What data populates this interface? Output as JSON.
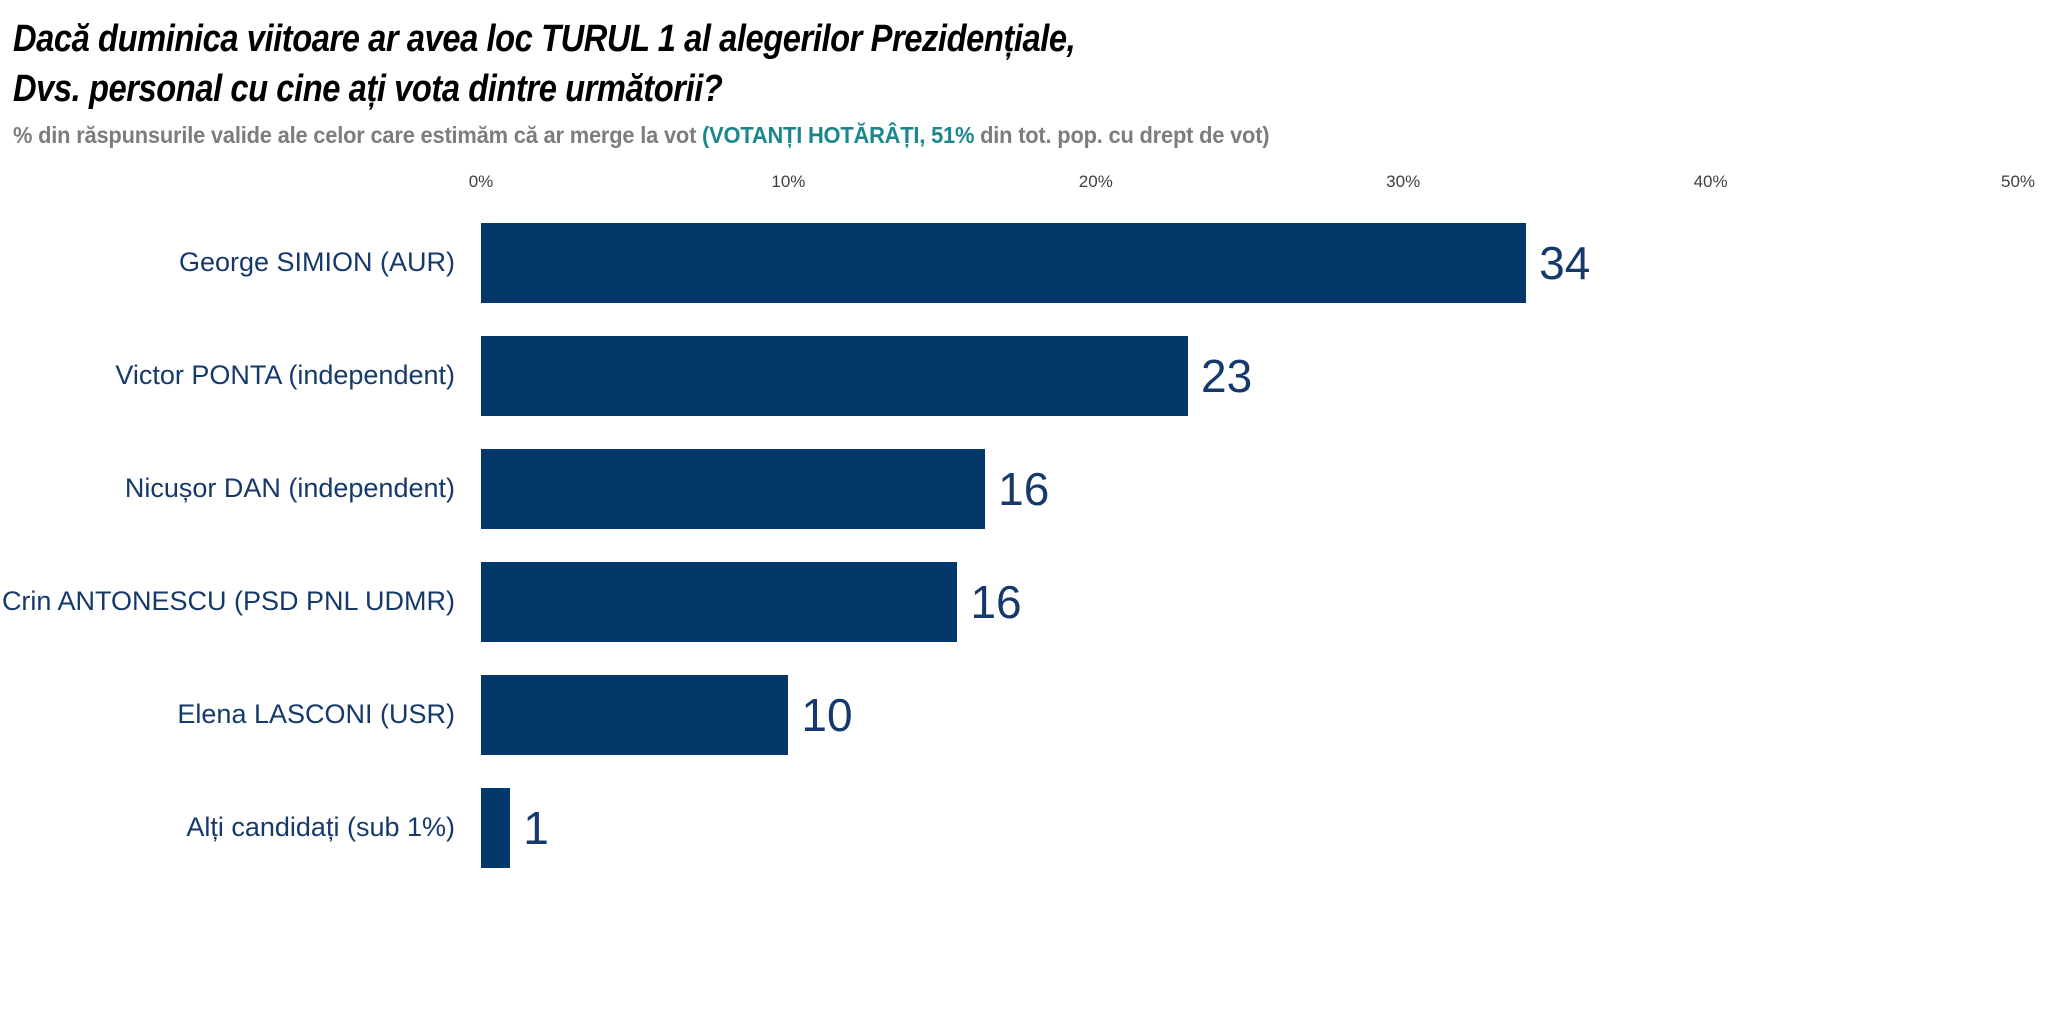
{
  "header": {
    "title_line1": "Dacă duminica viitoare ar avea loc TURUL 1 al alegerilor Prezidențiale,",
    "title_line2": "Dvs. personal cu cine ați vota dintre următorii?",
    "subtitle_prefix": "% din răspunsurile valide ale celor care estimăm că ar merge la vot ",
    "subtitle_highlight": "(VOTANȚI HOTĂRÂȚI, 51%",
    "subtitle_suffix": " din tot. pop. cu drept de vot)"
  },
  "colors": {
    "bar": "#04386a",
    "label_text": "#16396b",
    "value_text": "#16396b",
    "title_text": "#000000",
    "subtitle_gray": "#7c7d7f",
    "subtitle_teal": "#1b878c",
    "tick_text": "#3f3f3f",
    "background": "#ffffff"
  },
  "chart_data": {
    "type": "bar",
    "orientation": "horizontal",
    "title": "Dacă duminica viitoare ar avea loc TURUL 1 al alegerilor Prezidențiale, Dvs. personal cu cine ați vota dintre următorii?",
    "subtitle": "% din răspunsurile valide ale celor care estimăm că ar merge la vot (VOTANȚI HOTĂRÂȚI, 51% din tot. pop. cu drept de vot)",
    "categories": [
      "George SIMION (AUR)",
      "Victor PONTA (independent)",
      "Nicușor DAN (independent)",
      "Crin ANTONESCU (PSD PNL UDMR)",
      "Elena LASCONI (USR)",
      "Alți candidați (sub 1%)"
    ],
    "values": [
      34,
      23,
      16,
      16,
      10,
      1
    ],
    "bar_percent": [
      34,
      23,
      16.4,
      15.5,
      10,
      0.95
    ],
    "x_ticks": [
      "0%",
      "10%",
      "20%",
      "30%",
      "40%",
      "50%"
    ],
    "x_tick_values": [
      0,
      10,
      20,
      30,
      40,
      50
    ],
    "xlim": [
      0,
      50
    ],
    "grid": false,
    "legend": null,
    "value_labels": true
  }
}
